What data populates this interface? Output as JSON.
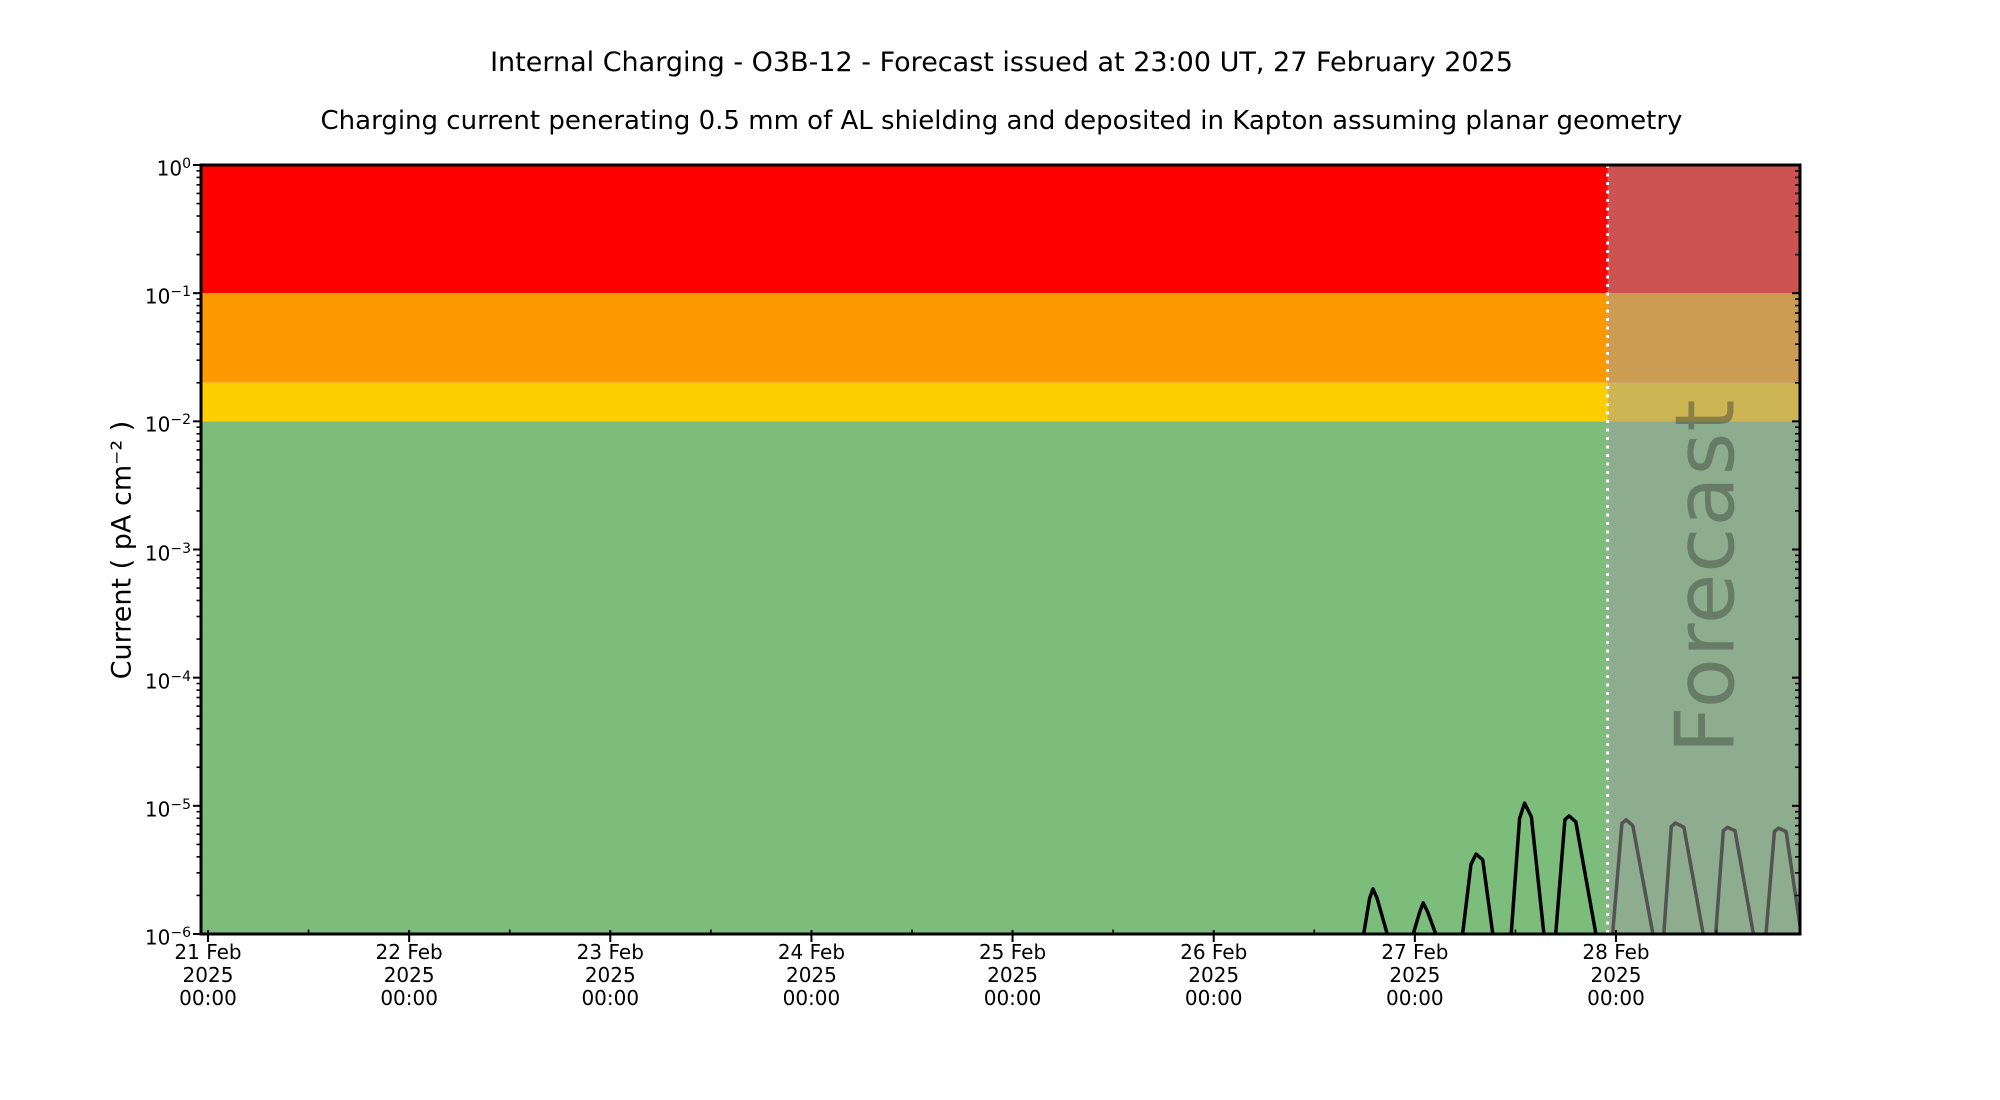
{
  "header": {
    "title": "Internal Charging - O3B-12 - Forecast issued at 23:00 UT, 27 February 2025",
    "subtitle": "Charging current penerating 0.5 mm of AL shielding and deposited in Kapton assuming planar geometry"
  },
  "chart_data": {
    "type": "line",
    "title": "Internal Charging - O3B-12 - Forecast issued at 23:00 UT, 27 February 2025",
    "subtitle": "Charging current penerating 0.5 mm of AL shielding and deposited in Kapton assuming planar geometry",
    "ylabel": "Current ( pA cm⁻² )",
    "y_scale": "log",
    "ylim": [
      1e-06,
      1.0
    ],
    "grid": false,
    "legend": "none",
    "x_axis": {
      "unit": "hours since 21 Feb 2025 00:00 UT",
      "range_hours": [
        -0.84,
        190.0
      ],
      "minor_tick_step_hours": 12,
      "major_ticks": [
        {
          "t": 0,
          "label": [
            "21 Feb",
            "2025",
            "00:00"
          ]
        },
        {
          "t": 24,
          "label": [
            "22 Feb",
            "2025",
            "00:00"
          ]
        },
        {
          "t": 48,
          "label": [
            "23 Feb",
            "2025",
            "00:00"
          ]
        },
        {
          "t": 72,
          "label": [
            "24 Feb",
            "2025",
            "00:00"
          ]
        },
        {
          "t": 96,
          "label": [
            "25 Feb",
            "2025",
            "00:00"
          ]
        },
        {
          "t": 120,
          "label": [
            "26 Feb",
            "2025",
            "00:00"
          ]
        },
        {
          "t": 144,
          "label": [
            "27 Feb",
            "2025",
            "00:00"
          ]
        },
        {
          "t": 168,
          "label": [
            "28 Feb",
            "2025",
            "00:00"
          ]
        }
      ]
    },
    "y_axis": {
      "major_ticks": [
        {
          "exp": 0
        },
        {
          "exp": -1
        },
        {
          "exp": -2
        },
        {
          "exp": -3
        },
        {
          "exp": -4
        },
        {
          "exp": -5
        },
        {
          "exp": -6
        }
      ]
    },
    "bands": [
      {
        "name": "red",
        "from": 0.1,
        "to": 1.0,
        "color": "#FF0000"
      },
      {
        "name": "orange",
        "from": 0.02,
        "to": 0.1,
        "color": "#FF9900"
      },
      {
        "name": "yellow",
        "from": 0.01,
        "to": 0.02,
        "color": "#FFCE00"
      },
      {
        "name": "green",
        "from": 1e-06,
        "to": 0.01,
        "color": "#7CBD7C"
      }
    ],
    "forecast": {
      "label": "Forecast",
      "start_hours": 167,
      "overlay_color": "rgba(160,160,160,0.52)",
      "divider_color": "#FFFFFF"
    },
    "series": [
      {
        "name": "charging-current",
        "color": "#000000",
        "spikes": [
          [
            [
              137.9,
              1e-06
            ],
            [
              138.6,
              1.9e-06
            ],
            [
              139.0,
              2.25e-06
            ],
            [
              139.5,
              1.9e-06
            ],
            [
              140.7,
              1e-06
            ]
          ],
          [
            [
              143.8,
              1e-06
            ],
            [
              144.6,
              1.5e-06
            ],
            [
              145.0,
              1.75e-06
            ],
            [
              145.5,
              1.5e-06
            ],
            [
              146.5,
              1e-06
            ]
          ],
          [
            [
              149.7,
              1e-06
            ],
            [
              150.7,
              3.5e-06
            ],
            [
              151.3,
              4.2e-06
            ],
            [
              152.1,
              3.8e-06
            ],
            [
              153.3,
              1e-06
            ]
          ],
          [
            [
              155.5,
              1e-06
            ],
            [
              156.5,
              8e-06
            ],
            [
              157.1,
              1.05e-05
            ],
            [
              157.9,
              8.2e-06
            ],
            [
              159.4,
              1e-06
            ]
          ],
          [
            [
              160.8,
              1e-06
            ],
            [
              161.9,
              7.8e-06
            ],
            [
              162.4,
              8.35e-06
            ],
            [
              163.2,
              7.5e-06
            ],
            [
              165.6,
              1e-06
            ]
          ],
          [
            [
              167.6,
              1e-06
            ],
            [
              168.7,
              7.3e-06
            ],
            [
              169.2,
              7.8e-06
            ],
            [
              170.0,
              7e-06
            ],
            [
              172.4,
              1e-06
            ]
          ],
          [
            [
              173.7,
              1e-06
            ],
            [
              174.6,
              6.9e-06
            ],
            [
              175.1,
              7.35e-06
            ],
            [
              176.1,
              6.8e-06
            ],
            [
              178.4,
              1e-06
            ]
          ],
          [
            [
              179.9,
              1e-06
            ],
            [
              180.8,
              6.4e-06
            ],
            [
              181.3,
              6.8e-06
            ],
            [
              182.2,
              6.4e-06
            ],
            [
              184.4,
              1e-06
            ]
          ],
          [
            [
              185.9,
              1e-06
            ],
            [
              186.9,
              6.3e-06
            ],
            [
              187.4,
              6.7e-06
            ],
            [
              188.3,
              6.3e-06
            ],
            [
              190.1,
              1e-06
            ]
          ]
        ]
      }
    ]
  }
}
